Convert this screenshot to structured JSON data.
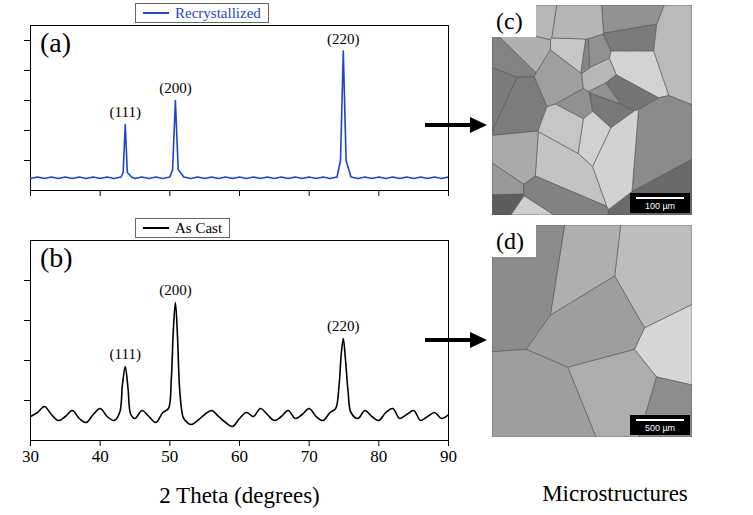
{
  "chart_data": [
    {
      "type": "line",
      "title": "(a)",
      "legend": "top",
      "x": [
        30,
        31,
        32,
        33,
        34,
        35,
        36,
        37,
        38,
        39,
        40,
        41,
        42,
        43,
        43.3,
        43.6,
        43.9,
        44.5,
        45,
        46,
        47,
        48,
        49,
        50,
        50.4,
        50.8,
        51.2,
        52,
        53,
        54,
        55,
        56,
        57,
        58,
        59,
        60,
        61,
        62,
        63,
        64,
        65,
        66,
        67,
        68,
        69,
        70,
        71,
        72,
        73,
        74,
        74.5,
        74.9,
        75.3,
        76,
        77,
        78,
        79,
        80,
        81,
        82,
        83,
        84,
        85,
        86,
        87,
        88,
        89,
        90
      ],
      "series": [
        {
          "name": "Recrystallized",
          "color": "#1f45c8",
          "values": [
            8,
            9,
            8,
            9,
            8,
            9,
            8,
            9,
            8,
            9,
            8,
            9,
            8,
            9,
            12,
            44,
            12,
            9,
            8,
            9,
            8,
            9,
            8,
            9,
            14,
            60,
            14,
            9,
            8,
            9,
            8,
            9,
            8,
            9,
            8,
            9,
            8,
            9,
            8,
            9,
            8,
            9,
            8,
            9,
            8,
            9,
            8,
            9,
            8,
            9,
            20,
            93,
            20,
            9,
            8,
            9,
            8,
            9,
            8,
            9,
            8,
            9,
            8,
            9,
            8,
            9,
            8,
            9
          ]
        }
      ],
      "annotations": [
        {
          "text": "(111)",
          "x": 43.6,
          "y": 44
        },
        {
          "text": "(200)",
          "x": 50.8,
          "y": 60
        },
        {
          "text": "(220)",
          "x": 74.9,
          "y": 93
        }
      ],
      "xlim": [
        30,
        90
      ],
      "xticks": [
        30,
        40,
        50,
        60,
        70,
        80,
        90
      ],
      "ylim": [
        0,
        110
      ],
      "yticks": [
        20,
        40,
        60,
        80,
        100
      ],
      "tick_labels": false
    },
    {
      "type": "line",
      "title": "(b)",
      "legend": "top",
      "x_label": "2 Theta (degrees)",
      "x": [
        30,
        31,
        32,
        33,
        34,
        35,
        36,
        37,
        38,
        39,
        40,
        41,
        42,
        42.8,
        43.2,
        43.6,
        44.0,
        44.4,
        45,
        46,
        47,
        48,
        49,
        49.8,
        50.2,
        50.5,
        50.8,
        51.1,
        51.4,
        51.8,
        52,
        53,
        54,
        55,
        56,
        57,
        58,
        59,
        60,
        61,
        62,
        63,
        64,
        65,
        66,
        67,
        68,
        69,
        70,
        71,
        72,
        73,
        73.8,
        74.3,
        74.6,
        74.9,
        75.2,
        75.6,
        76.0,
        77,
        78,
        79,
        80,
        81,
        82,
        83,
        84,
        85,
        86,
        87,
        88,
        89,
        90
      ],
      "series": [
        {
          "name": "As Cast",
          "color": "#000000",
          "values": [
            12,
            14,
            17,
            13,
            10,
            12,
            15,
            11,
            9,
            13,
            16,
            12,
            10,
            14,
            28,
            37,
            26,
            13,
            11,
            15,
            12,
            9,
            14,
            16,
            30,
            55,
            69,
            52,
            26,
            13,
            11,
            8,
            10,
            13,
            15,
            12,
            9,
            7,
            11,
            14,
            12,
            16,
            13,
            10,
            12,
            15,
            11,
            13,
            16,
            12,
            10,
            14,
            16,
            28,
            43,
            51,
            41,
            24,
            14,
            11,
            15,
            12,
            10,
            14,
            16,
            11,
            13,
            15,
            10,
            12,
            14,
            11,
            13
          ]
        }
      ],
      "annotations": [
        {
          "text": "(111)",
          "x": 43.6,
          "y": 37
        },
        {
          "text": "(200)",
          "x": 50.8,
          "y": 69
        },
        {
          "text": "(220)",
          "x": 74.9,
          "y": 51
        }
      ],
      "xlim": [
        30,
        90
      ],
      "xticks": [
        30,
        40,
        50,
        60,
        70,
        80,
        90
      ],
      "ylim": [
        0,
        100
      ],
      "yticks": [
        20,
        40,
        60,
        80
      ],
      "tick_labels": "x"
    }
  ],
  "microstructures": {
    "label": "Microstructures",
    "panels": [
      {
        "panel": "(c)",
        "scale_bar": "100 µm"
      },
      {
        "panel": "(d)",
        "scale_bar": "500 µm"
      }
    ]
  }
}
